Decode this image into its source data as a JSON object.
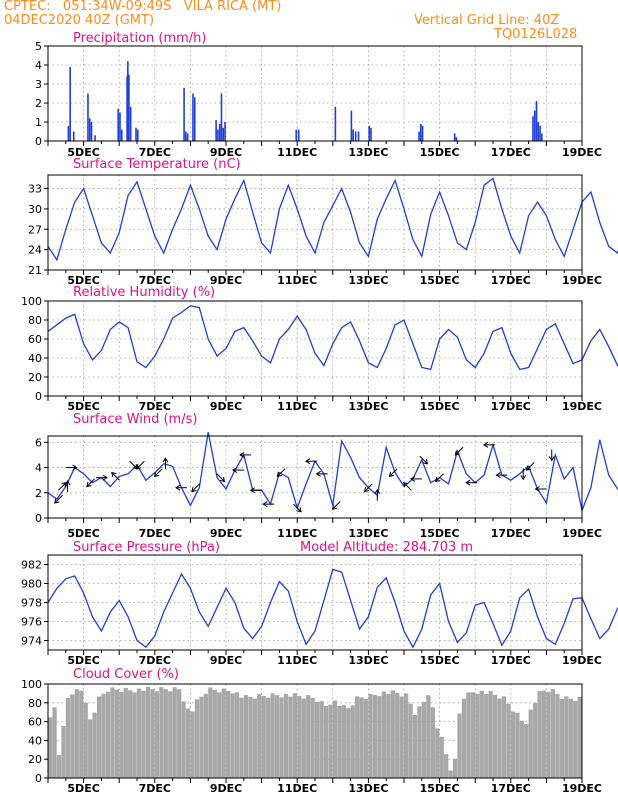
{
  "header": {
    "line1": "CPTEC:   051:34W-09:49S   VILA RICA (MT)",
    "line2": "04DEC2020 40Z (GMT)",
    "grid_note": "Vertical Grid Line: 40Z",
    "code": "TQ0126L028"
  },
  "colors": {
    "header": "#ff8c1a",
    "title": "#e0108c",
    "series": "#1f3fd8",
    "cloud": "#a8a8a8",
    "wind_arrow": "#000000"
  },
  "x_ticks": [
    "5DEC",
    "7DEC",
    "9DEC",
    "11DEC",
    "13DEC",
    "15DEC",
    "17DEC",
    "19DEC"
  ],
  "chart_data": [
    {
      "type": "bar",
      "title": "Precipitation (mm/h)",
      "ylim": [
        0,
        5
      ],
      "yticks": [
        "0",
        "1",
        "2",
        "3",
        "4",
        "5"
      ],
      "x_unit": "days since 04DEC 04Z",
      "x": [
        0.55,
        0.6,
        0.7,
        1.1,
        1.15,
        1.2,
        1.3,
        1.95,
        2.0,
        2.05,
        2.2,
        2.22,
        2.25,
        2.3,
        2.45,
        2.5,
        3.8,
        3.85,
        3.9,
        4.05,
        4.1,
        4.7,
        4.75,
        4.8,
        4.85,
        4.9,
        4.95,
        6.95,
        7.02,
        8.05,
        8.5,
        8.55,
        8.62,
        8.7,
        9.0,
        9.05,
        10.4,
        10.45,
        10.5,
        11.4,
        11.45,
        13.6,
        13.65,
        13.7,
        13.75,
        13.8,
        13.85
      ],
      "values": [
        0.8,
        3.9,
        0.5,
        2.5,
        1.2,
        1.0,
        0.3,
        1.7,
        1.5,
        0.6,
        3.4,
        4.2,
        3.5,
        1.8,
        0.7,
        0.6,
        2.8,
        0.5,
        0.4,
        2.5,
        2.3,
        1.1,
        0.6,
        0.9,
        2.5,
        0.7,
        1.0,
        0.6,
        0.6,
        1.8,
        1.6,
        0.6,
        0.5,
        0.5,
        0.8,
        0.7,
        0.5,
        0.9,
        0.8,
        0.4,
        0.2,
        1.3,
        1.6,
        2.1,
        1.0,
        0.8,
        0.4
      ]
    },
    {
      "type": "line",
      "title": "Surface Temperature (nC)",
      "ylim": [
        21,
        35
      ],
      "yticks": [
        "21",
        "24",
        "27",
        "30",
        "33"
      ],
      "series": [
        {
          "x_start": 0,
          "x_step": 0.25,
          "values": [
            24.5,
            22.5,
            27,
            31,
            33,
            29,
            25,
            23.5,
            26.5,
            32,
            34,
            30,
            26,
            23.5,
            27,
            30,
            33.5,
            30,
            26,
            24,
            28.5,
            31.5,
            34.2,
            29.5,
            25,
            23.5,
            30,
            33.5,
            30,
            26,
            23.5,
            28,
            30.5,
            33,
            29.5,
            25,
            23,
            28.5,
            31.5,
            34.2,
            30,
            25.5,
            23,
            29.2,
            32.5,
            29,
            25,
            24,
            28,
            33.5,
            34.5,
            30,
            26,
            23.5,
            29,
            31,
            29,
            25.5,
            23,
            27,
            31,
            32.5,
            28,
            24.5,
            23.5,
            28,
            32.5,
            29,
            25,
            22.5,
            29,
            33,
            29.5,
            26,
            24.5,
            28,
            32,
            29.5,
            25,
            23.5,
            29,
            31,
            33.5,
            29,
            26,
            25,
            30,
            33,
            28.5,
            25,
            23.5,
            31,
            34,
            32.5
          ]
        }
      ]
    },
    {
      "type": "line",
      "title": "Relative Humidity (%)",
      "ylim": [
        0,
        100
      ],
      "yticks": [
        "0",
        "20",
        "40",
        "60",
        "80",
        "100"
      ],
      "series": [
        {
          "x_start": 0,
          "x_step": 0.25,
          "values": [
            68,
            75,
            82,
            86,
            55,
            38,
            48,
            70,
            78,
            72,
            36,
            30,
            42,
            60,
            82,
            88,
            95,
            93,
            60,
            42,
            50,
            68,
            72,
            58,
            42,
            35,
            60,
            70,
            84,
            70,
            45,
            32,
            55,
            72,
            78,
            58,
            35,
            30,
            50,
            75,
            80,
            55,
            30,
            28,
            60,
            70,
            62,
            38,
            30,
            45,
            68,
            72,
            45,
            28,
            30,
            50,
            70,
            76,
            55,
            34,
            38,
            58,
            70,
            52,
            32,
            36,
            62,
            80,
            60,
            38,
            30,
            65,
            88,
            55,
            32,
            40,
            62,
            75,
            52,
            32,
            42,
            68,
            80,
            56,
            38,
            50,
            88,
            60,
            30,
            42,
            72,
            78,
            52,
            30,
            35,
            32,
            28
          ]
        }
      ]
    },
    {
      "type": "line",
      "title": "Surface Wind (m/s)",
      "ylim": [
        0,
        6.5
      ],
      "yticks": [
        "0",
        "2",
        "4",
        "6"
      ],
      "series": [
        {
          "x_start": 0,
          "x_step": 0.25,
          "values": [
            2.0,
            1.5,
            2.5,
            4.0,
            3.5,
            2.8,
            3.2,
            2.5,
            3.3,
            3.5,
            4.2,
            3.0,
            3.6,
            4.3,
            4.1,
            2.4,
            1.0,
            2.4,
            6.8,
            3.2,
            2.3,
            3.8,
            5.0,
            2.2,
            2.2,
            1.1,
            3.6,
            3.2,
            0.8,
            2.7,
            4.5,
            3.5,
            1.0,
            6.1,
            4.8,
            3.2,
            2.4,
            1.8,
            5.6,
            3.6,
            2.5,
            3.1,
            4.6,
            2.8,
            3.2,
            2.7,
            5.3,
            3.5,
            2.8,
            3.4,
            5.8,
            3.4,
            3.0,
            3.5,
            4.1,
            2.3,
            1.2,
            5.0,
            3.1,
            4.0,
            0.6,
            2.4,
            6.2,
            3.4,
            2.3,
            3.0,
            5.3,
            3.3,
            2.6,
            3.2,
            6.0,
            3.2,
            2.1,
            4.0,
            3.3,
            2.0,
            2.8,
            4.3,
            5.2,
            3.4,
            2.6,
            3.0,
            5.2,
            3.4,
            3.0,
            3.2,
            3.2,
            2.8,
            2.7,
            4.1,
            6.4,
            4.0,
            2.2,
            1.6,
            3.6
          ]
        }
      ],
      "arrows": [
        {
          "x": 0.3,
          "dir": "SW"
        },
        {
          "x": 0.4,
          "dir": "NE"
        },
        {
          "x": 0.55,
          "dir": "N"
        },
        {
          "x": 0.65,
          "dir": "E"
        },
        {
          "x": 1.2,
          "dir": "SW"
        },
        {
          "x": 1.5,
          "dir": "E"
        },
        {
          "x": 1.9,
          "dir": "NW"
        },
        {
          "x": 2.4,
          "dir": "SE"
        },
        {
          "x": 2.6,
          "dir": "SW"
        },
        {
          "x": 3.1,
          "dir": "SW"
        },
        {
          "x": 3.3,
          "dir": "N"
        },
        {
          "x": 3.75,
          "dir": "W"
        },
        {
          "x": 4.15,
          "dir": "SW"
        },
        {
          "x": 4.85,
          "dir": "SE"
        },
        {
          "x": 5.35,
          "dir": "W"
        },
        {
          "x": 5.55,
          "dir": "W"
        },
        {
          "x": 5.85,
          "dir": "W"
        },
        {
          "x": 6.2,
          "dir": "W"
        },
        {
          "x": 6.55,
          "dir": "SW"
        },
        {
          "x": 7.0,
          "dir": "SE"
        },
        {
          "x": 7.4,
          "dir": "W"
        },
        {
          "x": 7.7,
          "dir": "W"
        },
        {
          "x": 8.1,
          "dir": "SW"
        },
        {
          "x": 9.0,
          "dir": "SW"
        },
        {
          "x": 9.25,
          "dir": "N"
        },
        {
          "x": 9.7,
          "dir": "SW"
        },
        {
          "x": 10.1,
          "dir": "NW"
        },
        {
          "x": 10.35,
          "dir": "W"
        },
        {
          "x": 10.55,
          "dir": "SE"
        },
        {
          "x": 11.0,
          "dir": "SW"
        },
        {
          "x": 11.55,
          "dir": "SW"
        },
        {
          "x": 11.9,
          "dir": "W"
        },
        {
          "x": 12.4,
          "dir": "W"
        },
        {
          "x": 12.75,
          "dir": "W"
        },
        {
          "x": 13.35,
          "dir": "S"
        },
        {
          "x": 13.55,
          "dir": "SW"
        },
        {
          "x": 13.85,
          "dir": "W"
        },
        {
          "x": 14.15,
          "dir": "S"
        }
      ]
    },
    {
      "type": "line",
      "title": "Surface Pressure (hPa)",
      "annotation": "Model Altitude: 284.703 m",
      "ylim": [
        973,
        983
      ],
      "yticks": [
        "974",
        "976",
        "978",
        "980",
        "982"
      ],
      "series": [
        {
          "x_start": 0,
          "x_step": 0.25,
          "values": [
            978,
            979.5,
            980.5,
            980.8,
            979,
            976.5,
            975,
            977,
            978.2,
            976.5,
            974,
            973.3,
            974.5,
            977,
            979,
            981,
            979.5,
            977,
            975.5,
            977.5,
            979.5,
            978,
            975.3,
            974.2,
            975.5,
            978,
            980.2,
            979.2,
            976,
            973.6,
            975,
            978.2,
            981.5,
            981.2,
            978.2,
            975.2,
            976.5,
            979.6,
            980.6,
            978,
            975,
            973.3,
            975.2,
            978.8,
            980,
            976,
            973.8,
            974.8,
            977.7,
            978,
            975.8,
            973.5,
            975,
            978.5,
            979.4,
            976.5,
            974.2,
            973.6,
            975.8,
            978.4,
            978.5,
            976.3,
            974.2,
            975.2,
            977.4,
            977.8,
            975.2,
            973,
            974.6,
            977,
            977.2,
            975.2,
            973.4,
            975.5,
            978.2,
            978.4,
            976.2,
            974.2,
            975.5,
            978.2,
            977.6,
            975,
            973.2,
            974.6,
            977.3,
            978.2,
            975.8,
            973.4,
            974.8,
            977.7,
            978.2,
            975.6,
            973.5
          ]
        }
      ]
    },
    {
      "type": "bar",
      "title": "Cloud Cover (%)",
      "ylim": [
        0,
        100
      ],
      "yticks": [
        "0",
        "20",
        "40",
        "60",
        "80",
        "100"
      ],
      "x_start": 0,
      "x_step": 0.125,
      "anchors": [
        [
          0,
          45
        ],
        [
          0.15,
          92
        ],
        [
          0.35,
          15
        ],
        [
          0.5,
          85
        ],
        [
          0.7,
          95
        ],
        [
          1.0,
          97
        ],
        [
          1.2,
          62
        ],
        [
          1.45,
          88
        ],
        [
          1.7,
          97
        ],
        [
          2.0,
          97
        ],
        [
          2.3,
          97
        ],
        [
          3.0,
          97
        ],
        [
          3.7,
          98
        ],
        [
          4.0,
          70
        ],
        [
          4.15,
          82
        ],
        [
          4.5,
          97
        ],
        [
          5.2,
          96
        ],
        [
          5.5,
          88
        ],
        [
          6.0,
          90
        ],
        [
          6.5,
          92
        ],
        [
          7.0,
          90
        ],
        [
          7.5,
          88
        ],
        [
          7.8,
          80
        ],
        [
          8.0,
          86
        ],
        [
          8.4,
          75
        ],
        [
          8.7,
          88
        ],
        [
          9.0,
          90
        ],
        [
          9.4,
          94
        ],
        [
          9.8,
          93
        ],
        [
          10.1,
          90
        ],
        [
          10.3,
          72
        ],
        [
          10.5,
          80
        ],
        [
          10.7,
          95
        ],
        [
          10.95,
          55
        ],
        [
          11.1,
          40
        ],
        [
          11.3,
          12
        ],
        [
          11.45,
          22
        ],
        [
          11.6,
          88
        ],
        [
          12.0,
          96
        ],
        [
          12.4,
          93
        ],
        [
          12.8,
          88
        ],
        [
          13.2,
          70
        ],
        [
          13.4,
          60
        ],
        [
          13.6,
          78
        ],
        [
          13.8,
          92
        ],
        [
          14.0,
          97
        ],
        [
          14.2,
          95
        ],
        [
          14.5,
          88
        ]
      ]
    }
  ]
}
